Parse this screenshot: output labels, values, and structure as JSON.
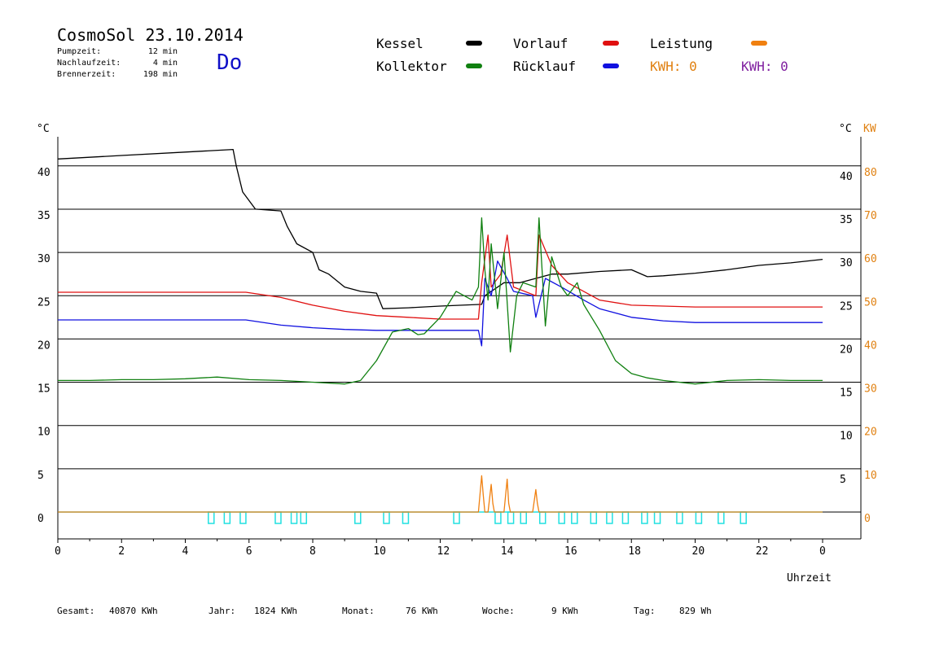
{
  "header": {
    "title": "CosmoSol 23.10.2014",
    "weekday": "Do",
    "stats": [
      {
        "label": "Pumpzeit:",
        "value": "12 min"
      },
      {
        "label": "Nachlaufzeit:",
        "value": "4 min"
      },
      {
        "label": "Brennerzeit:",
        "value": "198 min"
      }
    ]
  },
  "legend": {
    "items": [
      {
        "label": "Kessel",
        "color": "#000000"
      },
      {
        "label": "Vorlauf",
        "color": "#e01010"
      },
      {
        "label": "Leistung",
        "color": "#f08010"
      },
      {
        "label": "Kollektor",
        "color": "#108010"
      },
      {
        "label": "Rücklauf",
        "color": "#1010e0"
      }
    ],
    "kwh": [
      {
        "label": "KWH: 0",
        "color": "#e08010"
      },
      {
        "label": "KWH: 0",
        "color": "#8020a0"
      }
    ]
  },
  "footer": [
    {
      "label": "Gesamt:",
      "value": "40870 KWh"
    },
    {
      "label": "Jahr:",
      "value": "1824 KWh"
    },
    {
      "label": "Monat:",
      "value": "76 KWh"
    },
    {
      "label": "Woche:",
      "value": "9 KWh"
    },
    {
      "label": "Tag:",
      "value": "829 Wh"
    }
  ],
  "chart_data": {
    "type": "line",
    "xlabel": "Uhrzeit",
    "ylabel_left": "°C",
    "ylabel_right": "°C",
    "ylabel_right2": "KW",
    "xlim": [
      0,
      24
    ],
    "ylim": [
      0,
      45
    ],
    "x_ticks": [
      "0",
      "2",
      "4",
      "6",
      "8",
      "10",
      "12",
      "14",
      "16",
      "18",
      "20",
      "22",
      "0"
    ],
    "y_ticks_left": [
      "0",
      "5",
      "10",
      "15",
      "20",
      "25",
      "30",
      "35",
      "40"
    ],
    "y_ticks_right": [
      "",
      "5",
      "10",
      "15",
      "20",
      "25",
      "30",
      "35",
      "40"
    ],
    "y_ticks_kw": [
      "0",
      "10",
      "20",
      "30",
      "40",
      "50",
      "60",
      "70",
      "80"
    ],
    "grid": true,
    "series": [
      {
        "name": "Kessel",
        "color": "#000000",
        "x": [
          0,
          2,
          4,
          5.5,
          5.6,
          5.8,
          6.2,
          7,
          7.2,
          7.5,
          8,
          8.2,
          8.5,
          9,
          9.5,
          10,
          10.2,
          11,
          12,
          13.3,
          13.4,
          14,
          14.5,
          15,
          15.5,
          16,
          17,
          18,
          18.5,
          19,
          20,
          21,
          22,
          23,
          24
        ],
        "y": [
          40.8,
          41.2,
          41.6,
          41.9,
          40,
          37,
          35,
          34.8,
          33,
          31,
          30,
          28,
          27.5,
          26,
          25.5,
          25.3,
          23.5,
          23.6,
          23.8,
          24,
          25,
          26.5,
          26.5,
          27,
          27.5,
          27.5,
          27.8,
          28,
          27.2,
          27.3,
          27.6,
          28,
          28.5,
          28.8,
          29.2
        ]
      },
      {
        "name": "Vorlauf",
        "color": "#e01010",
        "x": [
          0,
          2,
          4,
          5.9,
          7,
          8,
          9,
          10,
          11,
          12,
          13.2,
          13.3,
          13.5,
          13.6,
          13.9,
          14.1,
          14.3,
          15,
          15.1,
          15.5,
          16,
          16.5,
          17,
          18,
          19,
          20,
          21,
          22,
          23,
          24
        ],
        "y": [
          25.4,
          25.4,
          25.4,
          25.4,
          24.8,
          23.9,
          23.2,
          22.7,
          22.5,
          22.3,
          22.3,
          26.5,
          32,
          26,
          27.5,
          32,
          26,
          25,
          32,
          28.5,
          26.5,
          25.5,
          24.5,
          23.9,
          23.8,
          23.7,
          23.7,
          23.7,
          23.7,
          23.7
        ]
      },
      {
        "name": "Rücklauf",
        "color": "#1010e0",
        "x": [
          0,
          2,
          4,
          5.9,
          7,
          8,
          9,
          10,
          11,
          12,
          13.2,
          13.3,
          13.4,
          13.6,
          13.8,
          14.1,
          14.3,
          14.9,
          15,
          15.3,
          15.8,
          16.5,
          17,
          18,
          19,
          20,
          21,
          22,
          23,
          24
        ],
        "y": [
          22.2,
          22.2,
          22.2,
          22.2,
          21.6,
          21.3,
          21.1,
          21,
          21,
          21,
          21,
          19.2,
          27,
          25,
          29,
          27,
          25.5,
          25,
          22.5,
          27,
          26,
          24.5,
          23.5,
          22.5,
          22.1,
          21.9,
          21.9,
          21.9,
          21.9,
          21.9
        ]
      },
      {
        "name": "Kollektor",
        "color": "#108010",
        "x": [
          0,
          1,
          2,
          3,
          4,
          5,
          6,
          7,
          8,
          9,
          9.5,
          10,
          10.5,
          11,
          11.3,
          11.5,
          12,
          12.5,
          13,
          13.2,
          13.3,
          13.4,
          13.5,
          13.6,
          13.8,
          14,
          14.2,
          14.4,
          14.6,
          15,
          15.1,
          15.3,
          15.5,
          15.8,
          16,
          16.3,
          16.5,
          17,
          17.5,
          18,
          18.5,
          19,
          20,
          21,
          22,
          23,
          24
        ],
        "y": [
          15.2,
          15.2,
          15.3,
          15.3,
          15.4,
          15.6,
          15.3,
          15.2,
          15.0,
          14.8,
          15.2,
          17.5,
          20.8,
          21.2,
          20.5,
          20.6,
          22.5,
          25.5,
          24.5,
          26,
          34,
          28,
          24.5,
          31,
          23.5,
          30,
          18.5,
          25,
          26.5,
          26,
          34,
          21.5,
          29.5,
          26,
          25,
          26.5,
          24,
          21,
          17.5,
          16,
          15.5,
          15.2,
          14.8,
          15.2,
          15.3,
          15.2,
          15.2
        ]
      },
      {
        "name": "Leistung",
        "color": "#f08010",
        "x": [
          0,
          13.2,
          13.3,
          13.35,
          13.4,
          13.5,
          13.6,
          13.65,
          13.7,
          13.8,
          14.0,
          14.1,
          14.15,
          14.2,
          14.9,
          15.0,
          15.05,
          15.1,
          24
        ],
        "y": [
          0,
          0,
          4.2,
          2,
          0,
          0,
          3.2,
          1,
          0,
          0,
          0,
          3.8,
          1,
          0,
          0,
          2.6,
          1,
          0,
          0
        ]
      }
    ],
    "pump_marks_x": [
      4.8,
      5.3,
      5.8,
      6.9,
      7.4,
      7.7,
      9.4,
      10.3,
      10.9,
      12.5,
      13.8,
      14.2,
      14.6,
      15.2,
      15.8,
      16.2,
      16.8,
      17.3,
      17.8,
      18.4,
      18.8,
      19.5,
      20.1,
      20.8,
      21.5
    ]
  }
}
